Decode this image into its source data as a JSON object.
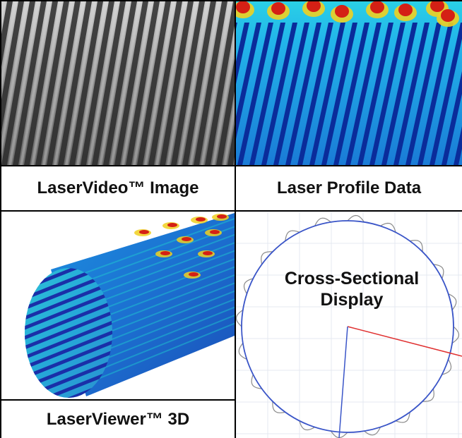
{
  "captions": {
    "laservideo": "LaserVideo™ Image",
    "laser_profile": "Laser Profile Data",
    "laserviewer": "LaserViewer™ 3D",
    "cross_line1": "Cross-Sectional",
    "cross_line2": "Display"
  },
  "colors": {
    "grayscale_bg": "#3a3a3a",
    "profile_blue": "#1a7bd6",
    "profile_cyan": "#21c4e8",
    "profile_deep": "#0a2c9a",
    "hot_red": "#d42015",
    "hot_yellow": "#f0d020",
    "circle_blue": "#3a55c8",
    "radius_red": "#e03030",
    "grid_line": "#e4e8f0"
  }
}
